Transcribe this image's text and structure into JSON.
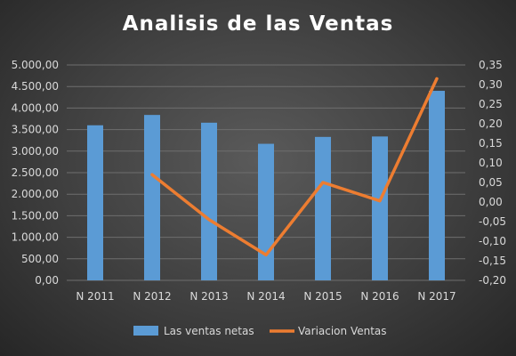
{
  "chart_data": {
    "type": "bar+line",
    "title": "Analisis de las Ventas",
    "categories": [
      "N 2011",
      "N 2012",
      "N 2013",
      "N 2014",
      "N 2015",
      "N 2016",
      "N 2017"
    ],
    "series": [
      {
        "name": "Las ventas netas",
        "type": "bar",
        "axis": "left",
        "color": "#5b9bd5",
        "values": [
          3600,
          3840,
          3660,
          3170,
          3330,
          3340,
          4400
        ]
      },
      {
        "name": "Variacion Ventas",
        "type": "line",
        "axis": "right",
        "color": "#ed7d31",
        "values": [
          null,
          0.07,
          -0.045,
          -0.135,
          0.05,
          0.003,
          0.315
        ]
      }
    ],
    "left_axis": {
      "ylim": [
        0,
        5000
      ],
      "ticks": [
        0,
        500,
        1000,
        1500,
        2000,
        2500,
        3000,
        3500,
        4000,
        4500,
        5000
      ],
      "tick_labels": [
        "0,00",
        "500,00",
        "1.000,00",
        "1.500,00",
        "2.000,00",
        "2.500,00",
        "3.000,00",
        "3.500,00",
        "4.000,00",
        "4.500,00",
        "5.000,00"
      ]
    },
    "right_axis": {
      "ylim": [
        -0.2,
        0.35
      ],
      "ticks": [
        -0.2,
        -0.15,
        -0.1,
        -0.05,
        0,
        0.05,
        0.1,
        0.15,
        0.2,
        0.25,
        0.3,
        0.35
      ],
      "tick_labels": [
        "-0,20",
        "-0,15",
        "-0,10",
        "-0,05",
        "0,00",
        "0,05",
        "0,10",
        "0,15",
        "0,20",
        "0,25",
        "0,30",
        "0,35"
      ]
    },
    "grid": true,
    "legend_position": "bottom"
  }
}
